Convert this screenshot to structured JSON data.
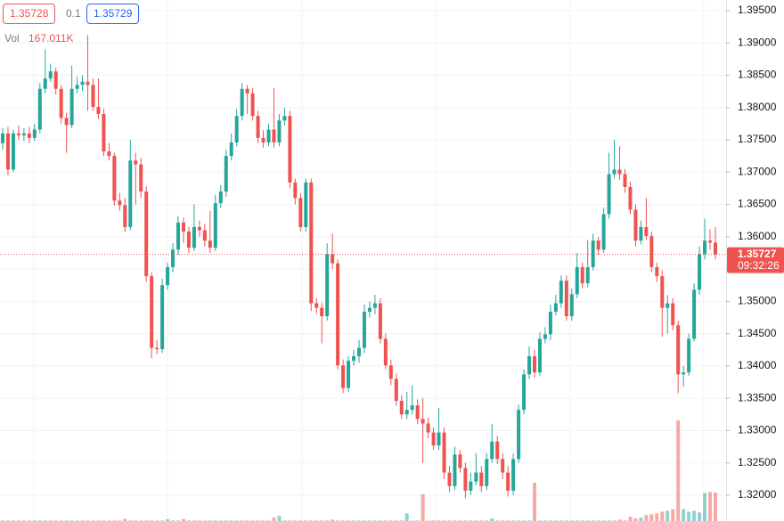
{
  "chart_data": {
    "type": "candlestick",
    "legend": {
      "bid": "1.35728",
      "spread": "0.1",
      "ask": "1.35729",
      "volume_label": "Vol",
      "volume_value": "167.011K"
    },
    "last_price": 1.35727,
    "countdown": "09:32:26",
    "up_color": "#26a69a",
    "down_color": "#ef5350",
    "volume_up_color": "rgba(38,166,154,0.5)",
    "volume_down_color": "rgba(239,83,80,0.5)",
    "grid": true,
    "ylim": [
      1.316,
      1.39665
    ],
    "yticks": [
      {
        "value": 1.395,
        "label": "1.39500"
      },
      {
        "value": 1.39,
        "label": "1.39000"
      },
      {
        "value": 1.385,
        "label": "1.38500"
      },
      {
        "value": 1.38,
        "label": "1.38000"
      },
      {
        "value": 1.375,
        "label": "1.37500"
      },
      {
        "value": 1.37,
        "label": "1.37000"
      },
      {
        "value": 1.365,
        "label": "1.36500"
      },
      {
        "value": 1.36,
        "label": "1.36000"
      },
      {
        "value": 1.355,
        "label": "1.35500"
      },
      {
        "value": 1.35,
        "label": "1.35000"
      },
      {
        "value": 1.345,
        "label": "1.34500"
      },
      {
        "value": 1.34,
        "label": "1.34000"
      },
      {
        "value": 1.335,
        "label": "1.33500"
      },
      {
        "value": 1.33,
        "label": "1.33000"
      },
      {
        "value": 1.325,
        "label": "1.32500"
      },
      {
        "value": 1.32,
        "label": "1.32000"
      }
    ],
    "volume_lim": [
      0,
      600
    ],
    "candles": [
      [
        1.3745,
        1.3768,
        1.3735,
        1.376
      ],
      [
        1.376,
        1.377,
        1.3695,
        1.3704
      ],
      [
        1.3704,
        1.3766,
        1.37,
        1.376
      ],
      [
        1.376,
        1.3772,
        1.375,
        1.3757
      ],
      [
        1.3757,
        1.3768,
        1.3748,
        1.376
      ],
      [
        1.376,
        1.377,
        1.3745,
        1.3753
      ],
      [
        1.3753,
        1.3775,
        1.3748,
        1.3766
      ],
      [
        1.3766,
        1.3838,
        1.376,
        1.3829
      ],
      [
        1.3829,
        1.389,
        1.3822,
        1.3845
      ],
      [
        1.3845,
        1.3868,
        1.384,
        1.3856
      ],
      [
        1.3856,
        1.3862,
        1.382,
        1.3829
      ],
      [
        1.3829,
        1.3835,
        1.3775,
        1.3784
      ],
      [
        1.3784,
        1.3792,
        1.373,
        1.3773
      ],
      [
        1.3773,
        1.3865,
        1.3768,
        1.3829
      ],
      [
        1.3829,
        1.3848,
        1.3822,
        1.3835
      ],
      [
        1.3835,
        1.385,
        1.3825,
        1.384
      ],
      [
        1.384,
        1.3912,
        1.3795,
        1.3835
      ],
      [
        1.3835,
        1.3845,
        1.3795,
        1.3801
      ],
      [
        1.3801,
        1.3845,
        1.3782,
        1.379
      ],
      [
        1.379,
        1.3798,
        1.3725,
        1.3732
      ],
      [
        1.3732,
        1.3745,
        1.3718,
        1.3725
      ],
      [
        1.3725,
        1.373,
        1.3648,
        1.3656
      ],
      [
        1.3656,
        1.3668,
        1.364,
        1.3649
      ],
      [
        1.3649,
        1.366,
        1.3608,
        1.3615
      ],
      [
        1.3615,
        1.375,
        1.361,
        1.3718
      ],
      [
        1.3718,
        1.373,
        1.365,
        1.3712
      ],
      [
        1.3712,
        1.3722,
        1.366,
        1.367
      ],
      [
        1.367,
        1.3678,
        1.353,
        1.3539
      ],
      [
        1.3539,
        1.3545,
        1.3412,
        1.3428
      ],
      [
        1.3428,
        1.344,
        1.3418,
        1.3426
      ],
      [
        1.3426,
        1.3535,
        1.342,
        1.3525
      ],
      [
        1.3525,
        1.356,
        1.3518,
        1.3553
      ],
      [
        1.3553,
        1.359,
        1.3545,
        1.358
      ],
      [
        1.358,
        1.3632,
        1.3572,
        1.3622
      ],
      [
        1.3622,
        1.363,
        1.359,
        1.3608
      ],
      [
        1.3608,
        1.3615,
        1.3575,
        1.3583
      ],
      [
        1.3583,
        1.365,
        1.3578,
        1.3615
      ],
      [
        1.3615,
        1.3625,
        1.36,
        1.361
      ],
      [
        1.361,
        1.362,
        1.3585,
        1.3594
      ],
      [
        1.3594,
        1.364,
        1.3575,
        1.3583
      ],
      [
        1.3583,
        1.3665,
        1.3578,
        1.3652
      ],
      [
        1.3652,
        1.368,
        1.3645,
        1.367
      ],
      [
        1.367,
        1.3735,
        1.3662,
        1.3725
      ],
      [
        1.3725,
        1.376,
        1.3718,
        1.3746
      ],
      [
        1.3746,
        1.3798,
        1.374,
        1.3787
      ],
      [
        1.3787,
        1.3838,
        1.378,
        1.3829
      ],
      [
        1.3829,
        1.3835,
        1.379,
        1.3822
      ],
      [
        1.3822,
        1.383,
        1.378,
        1.3787
      ],
      [
        1.3787,
        1.3795,
        1.3745,
        1.3753
      ],
      [
        1.3753,
        1.3765,
        1.3738,
        1.3746
      ],
      [
        1.3746,
        1.3775,
        1.374,
        1.3766
      ],
      [
        1.3766,
        1.383,
        1.3738,
        1.3746
      ],
      [
        1.3746,
        1.379,
        1.374,
        1.378
      ],
      [
        1.378,
        1.38,
        1.3772,
        1.3787
      ],
      [
        1.3787,
        1.3795,
        1.3675,
        1.3684
      ],
      [
        1.3684,
        1.369,
        1.365,
        1.366
      ],
      [
        1.366,
        1.3668,
        1.3608,
        1.3615
      ],
      [
        1.3615,
        1.369,
        1.3608,
        1.3684
      ],
      [
        1.3684,
        1.369,
        1.3485,
        1.3497
      ],
      [
        1.3497,
        1.3505,
        1.348,
        1.349
      ],
      [
        1.349,
        1.3498,
        1.3435,
        1.3477
      ],
      [
        1.3477,
        1.359,
        1.347,
        1.3573
      ],
      [
        1.3573,
        1.3605,
        1.355,
        1.3559
      ],
      [
        1.3559,
        1.3565,
        1.3395,
        1.3401
      ],
      [
        1.3401,
        1.341,
        1.3358,
        1.3366
      ],
      [
        1.3366,
        1.3415,
        1.336,
        1.3408
      ],
      [
        1.3408,
        1.3425,
        1.34,
        1.3415
      ],
      [
        1.3415,
        1.344,
        1.3405,
        1.3428
      ],
      [
        1.3428,
        1.3495,
        1.342,
        1.3484
      ],
      [
        1.3484,
        1.35,
        1.3475,
        1.349
      ],
      [
        1.349,
        1.351,
        1.348,
        1.3497
      ],
      [
        1.3497,
        1.3505,
        1.3435,
        1.3442
      ],
      [
        1.3442,
        1.345,
        1.3395,
        1.3401
      ],
      [
        1.3401,
        1.341,
        1.337,
        1.338
      ],
      [
        1.338,
        1.3388,
        1.3338,
        1.3346
      ],
      [
        1.3346,
        1.3355,
        1.3318,
        1.3325
      ],
      [
        1.3325,
        1.336,
        1.3318,
        1.3332
      ],
      [
        1.3332,
        1.337,
        1.3325,
        1.3339
      ],
      [
        1.3339,
        1.3348,
        1.331,
        1.3318
      ],
      [
        1.3318,
        1.335,
        1.325,
        1.3311
      ],
      [
        1.3311,
        1.332,
        1.3288,
        1.3297
      ],
      [
        1.3297,
        1.3305,
        1.327,
        1.3277
      ],
      [
        1.3277,
        1.3335,
        1.327,
        1.3297
      ],
      [
        1.3297,
        1.3305,
        1.3225,
        1.3235
      ],
      [
        1.3235,
        1.3245,
        1.3205,
        1.3214
      ],
      [
        1.3214,
        1.3275,
        1.3208,
        1.3263
      ],
      [
        1.3263,
        1.327,
        1.3235,
        1.3242
      ],
      [
        1.3242,
        1.325,
        1.3195,
        1.3207
      ],
      [
        1.3207,
        1.3235,
        1.32,
        1.3221
      ],
      [
        1.3221,
        1.3265,
        1.3215,
        1.3235
      ],
      [
        1.3235,
        1.3245,
        1.3205,
        1.3214
      ],
      [
        1.3214,
        1.3265,
        1.3208,
        1.3256
      ],
      [
        1.3256,
        1.331,
        1.325,
        1.3283
      ],
      [
        1.3283,
        1.3292,
        1.3248,
        1.3256
      ],
      [
        1.3256,
        1.3265,
        1.3225,
        1.3235
      ],
      [
        1.3235,
        1.3245,
        1.3198,
        1.3207
      ],
      [
        1.3207,
        1.3265,
        1.32,
        1.3256
      ],
      [
        1.3256,
        1.334,
        1.325,
        1.3332
      ],
      [
        1.3332,
        1.3395,
        1.3325,
        1.3387
      ],
      [
        1.3387,
        1.343,
        1.338,
        1.3415
      ],
      [
        1.3415,
        1.3425,
        1.3382,
        1.339
      ],
      [
        1.339,
        1.3452,
        1.3385,
        1.3442
      ],
      [
        1.3442,
        1.346,
        1.3435,
        1.3449
      ],
      [
        1.3449,
        1.3495,
        1.344,
        1.3484
      ],
      [
        1.3484,
        1.351,
        1.3478,
        1.3497
      ],
      [
        1.3497,
        1.354,
        1.349,
        1.3532
      ],
      [
        1.3532,
        1.354,
        1.347,
        1.3477
      ],
      [
        1.3477,
        1.352,
        1.347,
        1.3511
      ],
      [
        1.3511,
        1.3575,
        1.3505,
        1.3553
      ],
      [
        1.3553,
        1.356,
        1.352,
        1.3528
      ],
      [
        1.3528,
        1.3595,
        1.3522,
        1.3553
      ],
      [
        1.3553,
        1.3605,
        1.3548,
        1.3594
      ],
      [
        1.3594,
        1.36,
        1.3572,
        1.358
      ],
      [
        1.358,
        1.3645,
        1.3575,
        1.3635
      ],
      [
        1.3635,
        1.373,
        1.3628,
        1.3697
      ],
      [
        1.3697,
        1.375,
        1.369,
        1.3704
      ],
      [
        1.3704,
        1.374,
        1.3688,
        1.3697
      ],
      [
        1.3697,
        1.3705,
        1.3668,
        1.3677
      ],
      [
        1.3677,
        1.3685,
        1.3635,
        1.3642
      ],
      [
        1.3642,
        1.365,
        1.3585,
        1.3594
      ],
      [
        1.3594,
        1.3625,
        1.3588,
        1.3615
      ],
      [
        1.3615,
        1.366,
        1.3595,
        1.3601
      ],
      [
        1.3601,
        1.3608,
        1.3545,
        1.3553
      ],
      [
        1.3553,
        1.356,
        1.353,
        1.3539
      ],
      [
        1.3539,
        1.3548,
        1.3445,
        1.349
      ],
      [
        1.349,
        1.351,
        1.345,
        1.3497
      ],
      [
        1.3497,
        1.3505,
        1.3455,
        1.3463
      ],
      [
        1.3463,
        1.347,
        1.3358,
        1.3387
      ],
      [
        1.3387,
        1.34,
        1.3368,
        1.339
      ],
      [
        1.339,
        1.345,
        1.3385,
        1.3442
      ],
      [
        1.3442,
        1.3528,
        1.3438,
        1.3518
      ],
      [
        1.3518,
        1.3585,
        1.351,
        1.3573
      ],
      [
        1.3573,
        1.3628,
        1.3565,
        1.3594
      ],
      [
        1.3594,
        1.3612,
        1.358,
        1.3591
      ],
      [
        1.3591,
        1.3615,
        1.3565,
        1.35727
      ]
    ],
    "volume": [
      3,
      3,
      3,
      3,
      3,
      3,
      3,
      3,
      3,
      3,
      3,
      3,
      3,
      3,
      3,
      3,
      3,
      3,
      3,
      3,
      3,
      3,
      3,
      12,
      3,
      3,
      3,
      3,
      3,
      3,
      3,
      10,
      3,
      3,
      12,
      3,
      3,
      3,
      3,
      3,
      3,
      3,
      3,
      3,
      3,
      3,
      3,
      3,
      3,
      3,
      3,
      20,
      30,
      3,
      3,
      3,
      3,
      3,
      3,
      3,
      3,
      3,
      8,
      3,
      3,
      3,
      3,
      3,
      3,
      3,
      3,
      3,
      3,
      3,
      3,
      3,
      45,
      3,
      3,
      157,
      3,
      3,
      3,
      3,
      3,
      3,
      3,
      3,
      3,
      3,
      3,
      3,
      15,
      3,
      3,
      3,
      3,
      3,
      3,
      3,
      224,
      3,
      3,
      3,
      3,
      3,
      3,
      3,
      3,
      3,
      3,
      3,
      3,
      3,
      3,
      3,
      8,
      3,
      25,
      15,
      20,
      35,
      40,
      45,
      55,
      60,
      70,
      590,
      70,
      55,
      60,
      50,
      165,
      170,
      167.011
    ]
  }
}
